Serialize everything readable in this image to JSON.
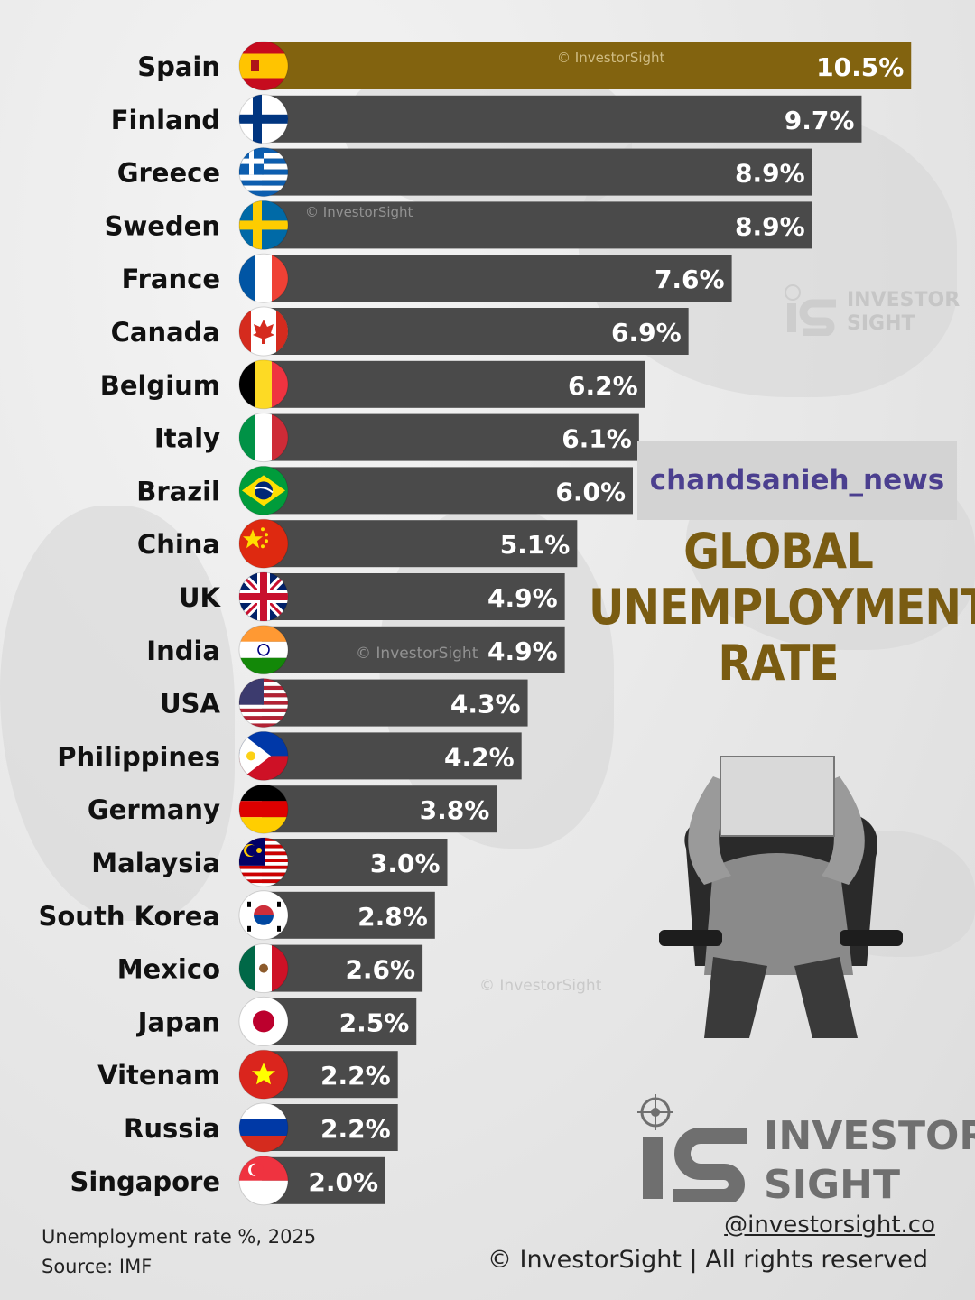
{
  "chart_data": {
    "type": "bar",
    "orientation": "horizontal",
    "categories": [
      "Spain",
      "Finland",
      "Greece",
      "Sweden",
      "France",
      "Canada",
      "Belgium",
      "Italy",
      "Brazil",
      "China",
      "UK",
      "India",
      "USA",
      "Philippines",
      "Germany",
      "Malaysia",
      "South Korea",
      "Mexico",
      "Japan",
      "Vitenam",
      "Russia",
      "Singapore"
    ],
    "values": [
      10.5,
      9.7,
      8.9,
      8.9,
      7.6,
      6.9,
      6.2,
      6.1,
      6.0,
      5.1,
      4.9,
      4.9,
      4.3,
      4.2,
      3.8,
      3.0,
      2.8,
      2.6,
      2.5,
      2.2,
      2.2,
      2.0
    ],
    "value_labels": [
      "10.5%",
      "9.7%",
      "8.9%",
      "8.9%",
      "7.6%",
      "6.9%",
      "6.2%",
      "6.1%",
      "6.0%",
      "5.1%",
      "4.9%",
      "4.9%",
      "4.3%",
      "4.2%",
      "3.8%",
      "3.0%",
      "2.8%",
      "2.6%",
      "2.5%",
      "2.2%",
      "2.2%",
      "2.0%"
    ],
    "title": "GLOBAL UNEMPLOYMENT RATE",
    "highlight_color": "#82630f",
    "bar_color": "#4a4a4a",
    "label_color": "#ffffff",
    "grid": false,
    "legend": "none",
    "flags": [
      "spain-flag",
      "finland-flag",
      "greece-flag",
      "sweden-flag",
      "france-flag",
      "canada-flag",
      "belgium-flag",
      "italy-flag",
      "brazil-flag",
      "china-flag",
      "uk-flag",
      "india-flag",
      "usa-flag",
      "philippines-flag",
      "germany-flag",
      "malaysia-flag",
      "south-korea-flag",
      "mexico-flag",
      "japan-flag",
      "vietnam-flag",
      "russia-flag",
      "singapore-flag"
    ]
  },
  "header": {
    "title_lines": [
      "GLOBAL",
      "UNEMPLOYMENT",
      "RATE"
    ]
  },
  "tag": "chandsanieh_news",
  "footer": {
    "note_line1": "Unemployment rate %, 2025",
    "note_line2": "Source: IMF",
    "handle": "@investorsight.co",
    "copyright": "© InvestorSight |  All rights reserved"
  },
  "brand": {
    "line1": "INVESTOR",
    "line2": "SIGHT",
    "watermark": "© InvestorSight",
    "logo_icon": "investorsight-logo-icon",
    "color": "#6f6f6f"
  },
  "illustration": "person-box-over-head-chair"
}
